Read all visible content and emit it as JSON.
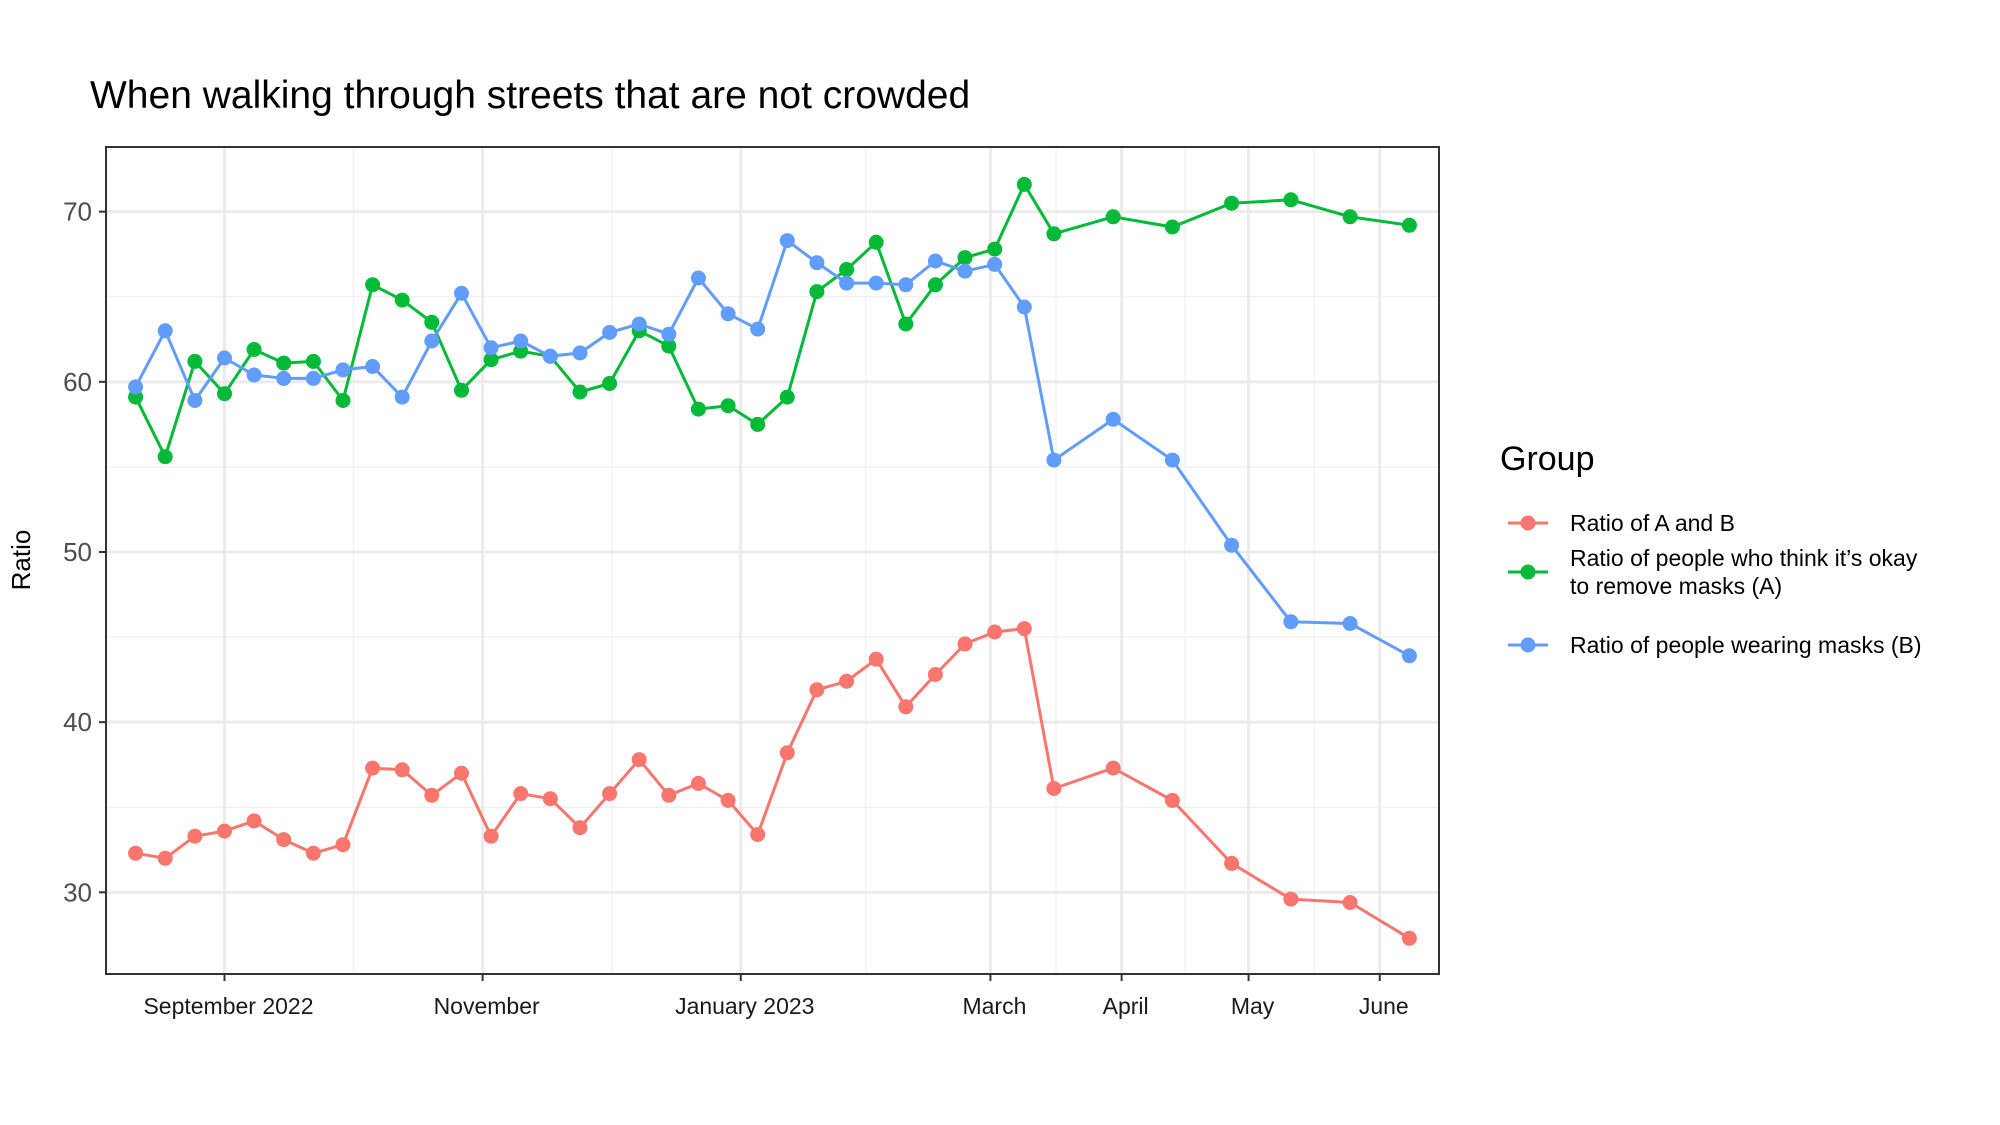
{
  "chart_data": {
    "type": "line",
    "title": "When walking through streets that are not crowded",
    "xlabel": "",
    "ylabel": "Ratio",
    "ylim": [
      25.2,
      73.8
    ],
    "yticks": [
      30,
      40,
      50,
      60,
      70
    ],
    "grid": true,
    "x_ticks": [
      {
        "label": "September 2022",
        "date": "2022-09-01"
      },
      {
        "label": "November",
        "date": "2022-11-01"
      },
      {
        "label": "January 2023",
        "date": "2023-01-01"
      },
      {
        "label": "March",
        "date": "2023-03-01"
      },
      {
        "label": "April",
        "date": "2023-04-01"
      },
      {
        "label": "May",
        "date": "2023-05-01"
      },
      {
        "label": "June",
        "date": "2023-06-01"
      }
    ],
    "legend": {
      "title": "Group",
      "position": "right",
      "entries": [
        {
          "lines": [
            "Ratio of A and B"
          ],
          "color": "#F8766D"
        },
        {
          "lines": [
            "Ratio of people who think it’s okay",
            "to remove masks (A)"
          ],
          "color": "#00BA38"
        },
        {
          "lines": [
            "Ratio of people wearing masks (B)"
          ],
          "color": "#619CFF"
        }
      ]
    },
    "series": [
      {
        "name": "Ratio of A and B",
        "color": "#F8766D",
        "points": [
          {
            "x": "2022-08-11",
            "y": 32.3
          },
          {
            "x": "2022-08-18",
            "y": 32.0
          },
          {
            "x": "2022-08-25",
            "y": 33.3
          },
          {
            "x": "2022-09-01",
            "y": 33.6
          },
          {
            "x": "2022-09-08",
            "y": 34.2
          },
          {
            "x": "2022-09-15",
            "y": 33.1
          },
          {
            "x": "2022-09-22",
            "y": 32.3
          },
          {
            "x": "2022-09-29",
            "y": 32.8
          },
          {
            "x": "2022-10-06",
            "y": 37.3
          },
          {
            "x": "2022-10-13",
            "y": 37.2
          },
          {
            "x": "2022-10-20",
            "y": 35.7
          },
          {
            "x": "2022-10-27",
            "y": 37.0
          },
          {
            "x": "2022-11-03",
            "y": 33.3
          },
          {
            "x": "2022-11-10",
            "y": 35.8
          },
          {
            "x": "2022-11-17",
            "y": 35.5
          },
          {
            "x": "2022-11-24",
            "y": 33.8
          },
          {
            "x": "2022-12-01",
            "y": 35.8
          },
          {
            "x": "2022-12-08",
            "y": 37.8
          },
          {
            "x": "2022-12-15",
            "y": 35.7
          },
          {
            "x": "2022-12-22",
            "y": 36.4
          },
          {
            "x": "2022-12-29",
            "y": 35.4
          },
          {
            "x": "2023-01-05",
            "y": 33.4
          },
          {
            "x": "2023-01-12",
            "y": 38.2
          },
          {
            "x": "2023-01-19",
            "y": 41.9
          },
          {
            "x": "2023-01-26",
            "y": 42.4
          },
          {
            "x": "2023-02-02",
            "y": 43.7
          },
          {
            "x": "2023-02-09",
            "y": 40.9
          },
          {
            "x": "2023-02-16",
            "y": 42.8
          },
          {
            "x": "2023-02-23",
            "y": 44.6
          },
          {
            "x": "2023-03-02",
            "y": 45.3
          },
          {
            "x": "2023-03-09",
            "y": 45.5
          },
          {
            "x": "2023-03-16",
            "y": 36.1
          },
          {
            "x": "2023-03-30",
            "y": 37.3
          },
          {
            "x": "2023-04-13",
            "y": 35.4
          },
          {
            "x": "2023-04-27",
            "y": 31.7
          },
          {
            "x": "2023-05-11",
            "y": 29.6
          },
          {
            "x": "2023-05-25",
            "y": 29.4
          },
          {
            "x": "2023-06-08",
            "y": 27.3
          }
        ]
      },
      {
        "name": "Ratio of people who think it’s okay to remove masks (A)",
        "color": "#00BA38",
        "points": [
          {
            "x": "2022-08-11",
            "y": 59.1
          },
          {
            "x": "2022-08-18",
            "y": 55.6
          },
          {
            "x": "2022-08-25",
            "y": 61.2
          },
          {
            "x": "2022-09-01",
            "y": 59.3
          },
          {
            "x": "2022-09-08",
            "y": 61.9
          },
          {
            "x": "2022-09-15",
            "y": 61.1
          },
          {
            "x": "2022-09-22",
            "y": 61.2
          },
          {
            "x": "2022-09-29",
            "y": 58.9
          },
          {
            "x": "2022-10-06",
            "y": 65.7
          },
          {
            "x": "2022-10-13",
            "y": 64.8
          },
          {
            "x": "2022-10-20",
            "y": 63.5
          },
          {
            "x": "2022-10-27",
            "y": 59.5
          },
          {
            "x": "2022-11-03",
            "y": 61.3
          },
          {
            "x": "2022-11-10",
            "y": 61.8
          },
          {
            "x": "2022-11-17",
            "y": 61.5
          },
          {
            "x": "2022-11-24",
            "y": 59.4
          },
          {
            "x": "2022-12-01",
            "y": 59.9
          },
          {
            "x": "2022-12-08",
            "y": 63.0
          },
          {
            "x": "2022-12-15",
            "y": 62.1
          },
          {
            "x": "2022-12-22",
            "y": 58.4
          },
          {
            "x": "2022-12-29",
            "y": 58.6
          },
          {
            "x": "2023-01-05",
            "y": 57.5
          },
          {
            "x": "2023-01-12",
            "y": 59.1
          },
          {
            "x": "2023-01-19",
            "y": 65.3
          },
          {
            "x": "2023-01-26",
            "y": 66.6
          },
          {
            "x": "2023-02-02",
            "y": 68.2
          },
          {
            "x": "2023-02-09",
            "y": 63.4
          },
          {
            "x": "2023-02-16",
            "y": 65.7
          },
          {
            "x": "2023-02-23",
            "y": 67.3
          },
          {
            "x": "2023-03-02",
            "y": 67.8
          },
          {
            "x": "2023-03-09",
            "y": 71.6
          },
          {
            "x": "2023-03-16",
            "y": 68.7
          },
          {
            "x": "2023-03-30",
            "y": 69.7
          },
          {
            "x": "2023-04-13",
            "y": 69.1
          },
          {
            "x": "2023-04-27",
            "y": 70.5
          },
          {
            "x": "2023-05-11",
            "y": 70.7
          },
          {
            "x": "2023-05-25",
            "y": 69.7
          },
          {
            "x": "2023-06-08",
            "y": 69.2
          }
        ]
      },
      {
        "name": "Ratio of people wearing masks (B)",
        "color": "#619CFF",
        "points": [
          {
            "x": "2022-08-11",
            "y": 59.7
          },
          {
            "x": "2022-08-18",
            "y": 63.0
          },
          {
            "x": "2022-08-25",
            "y": 58.9
          },
          {
            "x": "2022-09-01",
            "y": 61.4
          },
          {
            "x": "2022-09-08",
            "y": 60.4
          },
          {
            "x": "2022-09-15",
            "y": 60.2
          },
          {
            "x": "2022-09-22",
            "y": 60.2
          },
          {
            "x": "2022-09-29",
            "y": 60.7
          },
          {
            "x": "2022-10-06",
            "y": 60.9
          },
          {
            "x": "2022-10-13",
            "y": 59.1
          },
          {
            "x": "2022-10-20",
            "y": 62.4
          },
          {
            "x": "2022-10-27",
            "y": 65.2
          },
          {
            "x": "2022-11-03",
            "y": 62.0
          },
          {
            "x": "2022-11-10",
            "y": 62.4
          },
          {
            "x": "2022-11-17",
            "y": 61.5
          },
          {
            "x": "2022-11-24",
            "y": 61.7
          },
          {
            "x": "2022-12-01",
            "y": 62.9
          },
          {
            "x": "2022-12-08",
            "y": 63.4
          },
          {
            "x": "2022-12-15",
            "y": 62.8
          },
          {
            "x": "2022-12-22",
            "y": 66.1
          },
          {
            "x": "2022-12-29",
            "y": 64.0
          },
          {
            "x": "2023-01-05",
            "y": 63.1
          },
          {
            "x": "2023-01-12",
            "y": 68.3
          },
          {
            "x": "2023-01-19",
            "y": 67.0
          },
          {
            "x": "2023-01-26",
            "y": 65.8
          },
          {
            "x": "2023-02-02",
            "y": 65.8
          },
          {
            "x": "2023-02-09",
            "y": 65.7
          },
          {
            "x": "2023-02-16",
            "y": 67.1
          },
          {
            "x": "2023-02-23",
            "y": 66.5
          },
          {
            "x": "2023-03-02",
            "y": 66.9
          },
          {
            "x": "2023-03-09",
            "y": 64.4
          },
          {
            "x": "2023-03-16",
            "y": 55.4
          },
          {
            "x": "2023-03-30",
            "y": 57.8
          },
          {
            "x": "2023-04-13",
            "y": 55.4
          },
          {
            "x": "2023-04-27",
            "y": 50.4
          },
          {
            "x": "2023-05-11",
            "y": 45.9
          },
          {
            "x": "2023-05-25",
            "y": 45.8
          },
          {
            "x": "2023-06-08",
            "y": 43.9
          }
        ]
      }
    ]
  }
}
